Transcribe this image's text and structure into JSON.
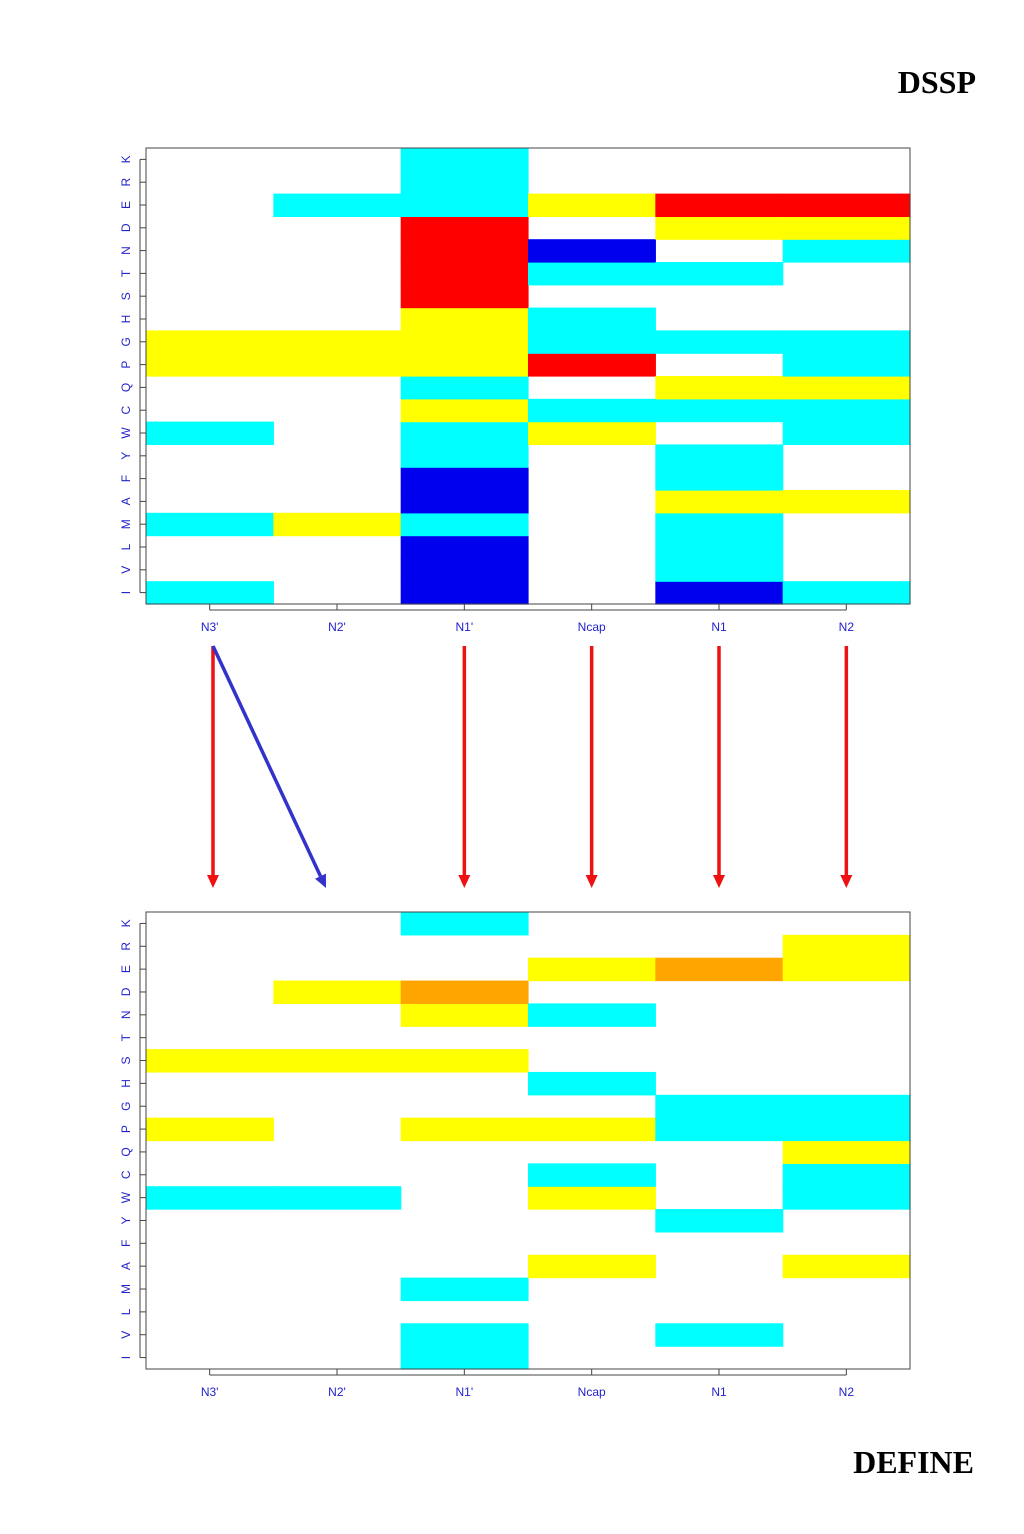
{
  "labels": {
    "top": "DSSP",
    "bottom": "DEFINE"
  },
  "colors": {
    "cyan": "#00ffff",
    "yellow": "#ffff00",
    "red": "#ff0000",
    "blue": "#0000ee",
    "orange": "#ffa500",
    "axis_text": "#2222cc",
    "red_arrow": "#ee1111",
    "blue_arrow": "#3333cc"
  },
  "chart_data": [
    {
      "type": "heatmap",
      "title": "DSSP",
      "columns": [
        "N3'",
        "N2'",
        "N1'",
        "Ncap",
        "N1",
        "N2"
      ],
      "rows": [
        "I",
        "V",
        "L",
        "M",
        "A",
        "F",
        "Y",
        "W",
        "C",
        "Q",
        "P",
        "G",
        "H",
        "S",
        "T",
        "N",
        "D",
        "E",
        "R",
        "K"
      ],
      "cells": [
        {
          "col": "N3'",
          "row": "I",
          "color": "cyan"
        },
        {
          "col": "N3'",
          "row": "M",
          "color": "cyan"
        },
        {
          "col": "N3'",
          "row": "W",
          "color": "cyan"
        },
        {
          "col": "N3'",
          "row": "P",
          "color": "yellow"
        },
        {
          "col": "N3'",
          "row": "G",
          "color": "yellow"
        },
        {
          "col": "N2'",
          "row": "M",
          "color": "yellow"
        },
        {
          "col": "N2'",
          "row": "P",
          "color": "yellow"
        },
        {
          "col": "N2'",
          "row": "G",
          "color": "yellow"
        },
        {
          "col": "N2'",
          "row": "E",
          "color": "cyan"
        },
        {
          "col": "N1'",
          "row": "I",
          "color": "blue"
        },
        {
          "col": "N1'",
          "row": "V",
          "color": "blue"
        },
        {
          "col": "N1'",
          "row": "L",
          "color": "blue"
        },
        {
          "col": "N1'",
          "row": "M",
          "color": "cyan"
        },
        {
          "col": "N1'",
          "row": "A",
          "color": "blue"
        },
        {
          "col": "N1'",
          "row": "F",
          "color": "blue"
        },
        {
          "col": "N1'",
          "row": "Y",
          "color": "cyan"
        },
        {
          "col": "N1'",
          "row": "W",
          "color": "cyan"
        },
        {
          "col": "N1'",
          "row": "C",
          "color": "yellow"
        },
        {
          "col": "N1'",
          "row": "Q",
          "color": "cyan"
        },
        {
          "col": "N1'",
          "row": "P",
          "color": "yellow"
        },
        {
          "col": "N1'",
          "row": "G",
          "color": "yellow"
        },
        {
          "col": "N1'",
          "row": "H",
          "color": "yellow"
        },
        {
          "col": "N1'",
          "row": "S",
          "color": "red"
        },
        {
          "col": "N1'",
          "row": "T",
          "color": "red"
        },
        {
          "col": "N1'",
          "row": "N",
          "color": "red"
        },
        {
          "col": "N1'",
          "row": "D",
          "color": "red"
        },
        {
          "col": "N1'",
          "row": "E",
          "color": "cyan"
        },
        {
          "col": "N1'",
          "row": "R",
          "color": "cyan"
        },
        {
          "col": "N1'",
          "row": "K",
          "color": "cyan"
        },
        {
          "col": "Ncap",
          "row": "W",
          "color": "yellow"
        },
        {
          "col": "Ncap",
          "row": "C",
          "color": "cyan"
        },
        {
          "col": "Ncap",
          "row": "P",
          "color": "red"
        },
        {
          "col": "Ncap",
          "row": "G",
          "color": "cyan"
        },
        {
          "col": "Ncap",
          "row": "H",
          "color": "cyan"
        },
        {
          "col": "Ncap",
          "row": "T",
          "color": "cyan"
        },
        {
          "col": "Ncap",
          "row": "N",
          "color": "blue"
        },
        {
          "col": "Ncap",
          "row": "E",
          "color": "yellow"
        },
        {
          "col": "N1",
          "row": "I",
          "color": "blue"
        },
        {
          "col": "N1",
          "row": "V",
          "color": "cyan"
        },
        {
          "col": "N1",
          "row": "L",
          "color": "cyan"
        },
        {
          "col": "N1",
          "row": "M",
          "color": "cyan"
        },
        {
          "col": "N1",
          "row": "A",
          "color": "yellow"
        },
        {
          "col": "N1",
          "row": "F",
          "color": "cyan"
        },
        {
          "col": "N1",
          "row": "Y",
          "color": "cyan"
        },
        {
          "col": "N1",
          "row": "C",
          "color": "cyan"
        },
        {
          "col": "N1",
          "row": "Q",
          "color": "yellow"
        },
        {
          "col": "N1",
          "row": "G",
          "color": "cyan"
        },
        {
          "col": "N1",
          "row": "T",
          "color": "cyan"
        },
        {
          "col": "N1",
          "row": "D",
          "color": "yellow"
        },
        {
          "col": "N1",
          "row": "E",
          "color": "red"
        },
        {
          "col": "N2",
          "row": "I",
          "color": "cyan"
        },
        {
          "col": "N2",
          "row": "A",
          "color": "yellow"
        },
        {
          "col": "N2",
          "row": "W",
          "color": "cyan"
        },
        {
          "col": "N2",
          "row": "C",
          "color": "cyan"
        },
        {
          "col": "N2",
          "row": "Q",
          "color": "yellow"
        },
        {
          "col": "N2",
          "row": "P",
          "color": "cyan"
        },
        {
          "col": "N2",
          "row": "G",
          "color": "cyan"
        },
        {
          "col": "N2",
          "row": "N",
          "color": "cyan"
        },
        {
          "col": "N2",
          "row": "D",
          "color": "yellow"
        },
        {
          "col": "N2",
          "row": "E",
          "color": "red"
        }
      ]
    },
    {
      "type": "heatmap",
      "title": "DEFINE",
      "columns": [
        "N3'",
        "N2'",
        "N1'",
        "Ncap",
        "N1",
        "N2"
      ],
      "rows": [
        "I",
        "V",
        "L",
        "M",
        "A",
        "F",
        "Y",
        "W",
        "C",
        "Q",
        "P",
        "G",
        "H",
        "S",
        "T",
        "N",
        "D",
        "E",
        "R",
        "K"
      ],
      "cells": [
        {
          "col": "N3'",
          "row": "W",
          "color": "cyan"
        },
        {
          "col": "N3'",
          "row": "P",
          "color": "yellow"
        },
        {
          "col": "N3'",
          "row": "S",
          "color": "yellow"
        },
        {
          "col": "N2'",
          "row": "W",
          "color": "cyan"
        },
        {
          "col": "N2'",
          "row": "S",
          "color": "yellow"
        },
        {
          "col": "N2'",
          "row": "D",
          "color": "yellow"
        },
        {
          "col": "N1'",
          "row": "I",
          "color": "cyan"
        },
        {
          "col": "N1'",
          "row": "V",
          "color": "cyan"
        },
        {
          "col": "N1'",
          "row": "M",
          "color": "cyan"
        },
        {
          "col": "N1'",
          "row": "P",
          "color": "yellow"
        },
        {
          "col": "N1'",
          "row": "S",
          "color": "yellow"
        },
        {
          "col": "N1'",
          "row": "N",
          "color": "yellow"
        },
        {
          "col": "N1'",
          "row": "D",
          "color": "orange"
        },
        {
          "col": "N1'",
          "row": "K",
          "color": "cyan"
        },
        {
          "col": "Ncap",
          "row": "A",
          "color": "yellow"
        },
        {
          "col": "Ncap",
          "row": "W",
          "color": "yellow"
        },
        {
          "col": "Ncap",
          "row": "C",
          "color": "cyan"
        },
        {
          "col": "Ncap",
          "row": "P",
          "color": "yellow"
        },
        {
          "col": "Ncap",
          "row": "H",
          "color": "cyan"
        },
        {
          "col": "Ncap",
          "row": "N",
          "color": "cyan"
        },
        {
          "col": "Ncap",
          "row": "E",
          "color": "yellow"
        },
        {
          "col": "N1",
          "row": "V",
          "color": "cyan"
        },
        {
          "col": "N1",
          "row": "Y",
          "color": "cyan"
        },
        {
          "col": "N1",
          "row": "P",
          "color": "cyan"
        },
        {
          "col": "N1",
          "row": "G",
          "color": "cyan"
        },
        {
          "col": "N1",
          "row": "E",
          "color": "orange"
        },
        {
          "col": "N2",
          "row": "A",
          "color": "yellow"
        },
        {
          "col": "N2",
          "row": "W",
          "color": "cyan"
        },
        {
          "col": "N2",
          "row": "C",
          "color": "cyan"
        },
        {
          "col": "N2",
          "row": "Q",
          "color": "yellow"
        },
        {
          "col": "N2",
          "row": "P",
          "color": "cyan"
        },
        {
          "col": "N2",
          "row": "G",
          "color": "cyan"
        },
        {
          "col": "N2",
          "row": "E",
          "color": "yellow"
        },
        {
          "col": "N2",
          "row": "R",
          "color": "yellow"
        }
      ]
    }
  ],
  "arrows": [
    {
      "from": "N3'",
      "to": "N3'",
      "color": "red_arrow"
    },
    {
      "from": "N3'",
      "to": "N2'",
      "color": "blue_arrow"
    },
    {
      "from": "N1'",
      "to": "N1'",
      "color": "red_arrow"
    },
    {
      "from": "Ncap",
      "to": "Ncap",
      "color": "red_arrow"
    },
    {
      "from": "N1",
      "to": "N1",
      "color": "red_arrow"
    },
    {
      "from": "N2",
      "to": "N2",
      "color": "red_arrow"
    }
  ]
}
